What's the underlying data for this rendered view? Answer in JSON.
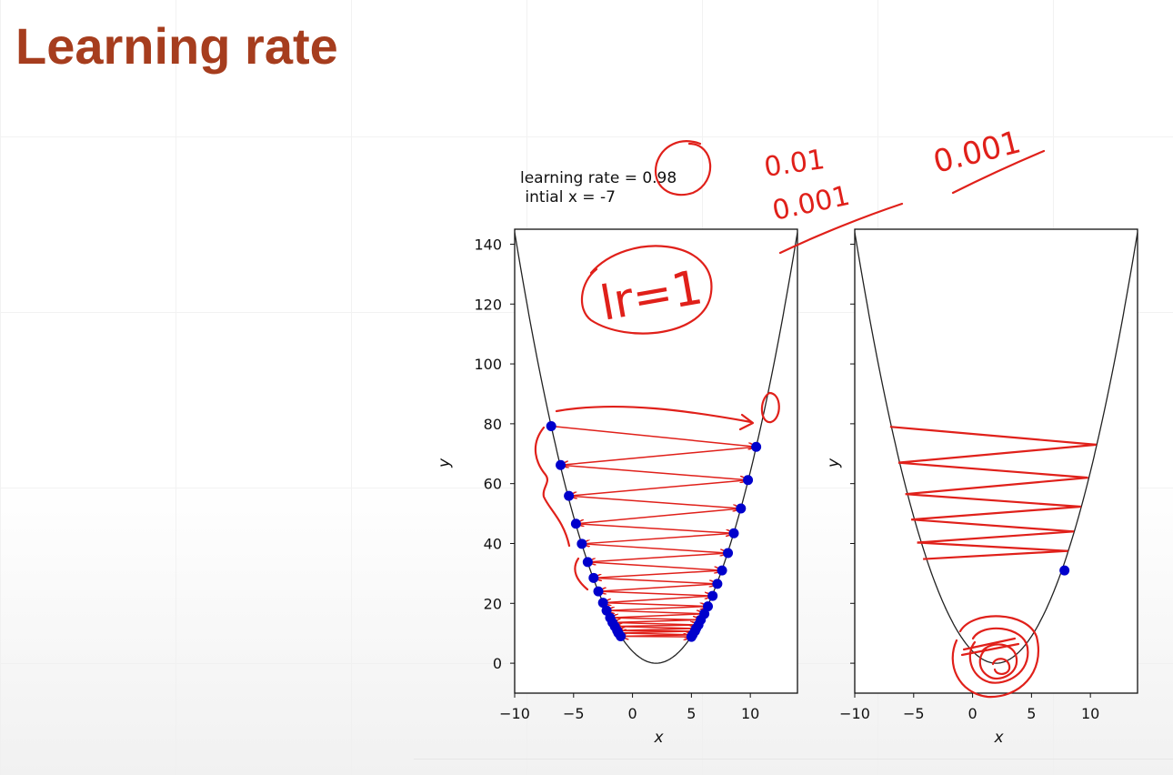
{
  "slide": {
    "title": "Learning rate"
  },
  "header": {
    "line1": "learning rate = 0.98",
    "line2": " intial x = -7"
  },
  "colors": {
    "title": "#a63d1e",
    "points": "#0000cc",
    "arrows": "#e0201a",
    "curve": "#222222"
  },
  "chart_data": [
    {
      "type": "line",
      "function": "y = (x - 2)^2",
      "curve_x_range": [
        -10,
        14
      ],
      "xlim": [
        -10,
        14
      ],
      "ylim": [
        -10,
        145
      ],
      "xticks": [
        -10,
        -5,
        0,
        5,
        10
      ],
      "xtick_labels": [
        "−10",
        "−5",
        "0",
        "5",
        "10"
      ],
      "yticks": [
        0,
        20,
        40,
        60,
        80,
        100,
        120,
        140
      ],
      "ytick_labels": [
        "0",
        "20",
        "40",
        "60",
        "80",
        "100",
        "120",
        "140"
      ],
      "xlabel": "x",
      "ylabel": "y",
      "points": [
        {
          "x": -6.9,
          "y": 79.2
        },
        {
          "x": 10.5,
          "y": 72.3
        },
        {
          "x": -6.1,
          "y": 66.2
        },
        {
          "x": 9.8,
          "y": 61.2
        },
        {
          "x": -5.4,
          "y": 55.9
        },
        {
          "x": 9.2,
          "y": 51.7
        },
        {
          "x": -4.8,
          "y": 46.6
        },
        {
          "x": 8.6,
          "y": 43.4
        },
        {
          "x": -4.3,
          "y": 39.9
        },
        {
          "x": 8.1,
          "y": 36.8
        },
        {
          "x": -3.8,
          "y": 33.8
        },
        {
          "x": 7.6,
          "y": 31.0
        },
        {
          "x": -3.3,
          "y": 28.5
        },
        {
          "x": 7.2,
          "y": 26.5
        },
        {
          "x": -2.9,
          "y": 24.0
        },
        {
          "x": 6.8,
          "y": 22.5
        },
        {
          "x": -2.5,
          "y": 20.2
        },
        {
          "x": 6.4,
          "y": 19.0
        },
        {
          "x": -2.2,
          "y": 17.6
        },
        {
          "x": 6.1,
          "y": 16.5
        },
        {
          "x": -1.9,
          "y": 15.2
        },
        {
          "x": 5.8,
          "y": 14.5
        },
        {
          "x": -1.7,
          "y": 13.6
        },
        {
          "x": 5.6,
          "y": 12.8
        },
        {
          "x": -1.5,
          "y": 12.3
        },
        {
          "x": 5.4,
          "y": 11.6
        },
        {
          "x": -1.3,
          "y": 10.9
        },
        {
          "x": 5.3,
          "y": 10.7
        },
        {
          "x": -1.2,
          "y": 10.1
        },
        {
          "x": 5.1,
          "y": 9.5
        },
        {
          "x": -1.0,
          "y": 9.0
        },
        {
          "x": 5.0,
          "y": 8.8
        }
      ]
    },
    {
      "type": "line",
      "function": "y = (x - 2)^2",
      "curve_x_range": [
        -10,
        14
      ],
      "xlim": [
        -10,
        14
      ],
      "ylim": [
        -10,
        145
      ],
      "xticks": [
        -10,
        -5,
        0,
        5,
        10
      ],
      "xtick_labels": [
        "−10",
        "−5",
        "0",
        "5",
        "10"
      ],
      "yticks": [
        0,
        20,
        40,
        60,
        80,
        100,
        120,
        140
      ],
      "xlabel": "x",
      "ylabel": "y",
      "segments": [
        [
          {
            "x": -7.0,
            "y": 79.0
          },
          {
            "x": 10.5,
            "y": 73.0
          }
        ],
        [
          {
            "x": 10.5,
            "y": 73.0
          },
          {
            "x": -6.3,
            "y": 67.0
          }
        ],
        [
          {
            "x": -6.3,
            "y": 67.0
          },
          {
            "x": 9.8,
            "y": 62.0
          }
        ],
        [
          {
            "x": 9.8,
            "y": 62.0
          },
          {
            "x": -5.7,
            "y": 56.5
          }
        ],
        [
          {
            "x": -5.7,
            "y": 56.5
          },
          {
            "x": 9.2,
            "y": 52.3
          }
        ],
        [
          {
            "x": 9.2,
            "y": 52.3
          },
          {
            "x": -5.2,
            "y": 48.0
          }
        ],
        [
          {
            "x": -5.2,
            "y": 48.0
          },
          {
            "x": 8.6,
            "y": 44.0
          }
        ],
        [
          {
            "x": 8.6,
            "y": 44.0
          },
          {
            "x": -4.7,
            "y": 40.3
          }
        ],
        [
          {
            "x": -4.7,
            "y": 40.3
          },
          {
            "x": 8.1,
            "y": 37.5
          }
        ],
        [
          {
            "x": 8.1,
            "y": 37.5
          },
          {
            "x": -4.2,
            "y": 34.8
          }
        ]
      ],
      "points": [
        {
          "x": 7.8,
          "y": 31.0
        }
      ]
    }
  ],
  "annotations": {
    "handwriting_top_right_1": "0.01",
    "handwriting_top_right_2": "0.001",
    "handwriting_top_right_3": "0.001",
    "handwriting_left_plot": "lr=1"
  }
}
